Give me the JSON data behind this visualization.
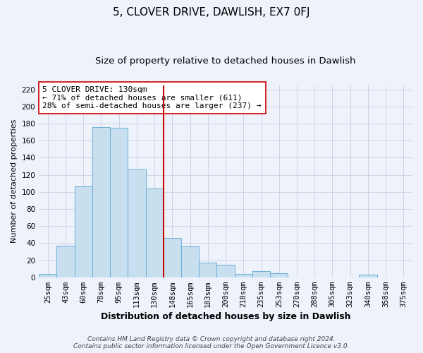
{
  "title": "5, CLOVER DRIVE, DAWLISH, EX7 0FJ",
  "subtitle": "Size of property relative to detached houses in Dawlish",
  "xlabel": "Distribution of detached houses by size in Dawlish",
  "ylabel": "Number of detached properties",
  "bar_labels": [
    "25sqm",
    "43sqm",
    "60sqm",
    "78sqm",
    "95sqm",
    "113sqm",
    "130sqm",
    "148sqm",
    "165sqm",
    "183sqm",
    "200sqm",
    "218sqm",
    "235sqm",
    "253sqm",
    "270sqm",
    "288sqm",
    "305sqm",
    "323sqm",
    "340sqm",
    "358sqm",
    "375sqm"
  ],
  "bar_values": [
    4,
    37,
    106,
    176,
    175,
    126,
    104,
    46,
    36,
    17,
    15,
    4,
    7,
    5,
    0,
    0,
    0,
    0,
    3,
    0,
    0
  ],
  "bar_color": "#c8dff0",
  "bar_edge_color": "#6aafd6",
  "vline_index": 6,
  "vline_color": "#cc0000",
  "annotation_title": "5 CLOVER DRIVE: 130sqm",
  "annotation_line1": "← 71% of detached houses are smaller (611)",
  "annotation_line2": "28% of semi-detached houses are larger (237) →",
  "annotation_box_color": "#ffffff",
  "annotation_box_edge": "#cc0000",
  "ylim": [
    0,
    225
  ],
  "yticks": [
    0,
    20,
    40,
    60,
    80,
    100,
    120,
    140,
    160,
    180,
    200,
    220
  ],
  "footer_line1": "Contains HM Land Registry data © Crown copyright and database right 2024.",
  "footer_line2": "Contains public sector information licensed under the Open Government Licence v3.0.",
  "title_fontsize": 11,
  "subtitle_fontsize": 9.5,
  "xlabel_fontsize": 9,
  "ylabel_fontsize": 8,
  "tick_fontsize": 7.5,
  "annotation_fontsize": 8,
  "footer_fontsize": 6.5,
  "bg_color": "#eef2fb"
}
